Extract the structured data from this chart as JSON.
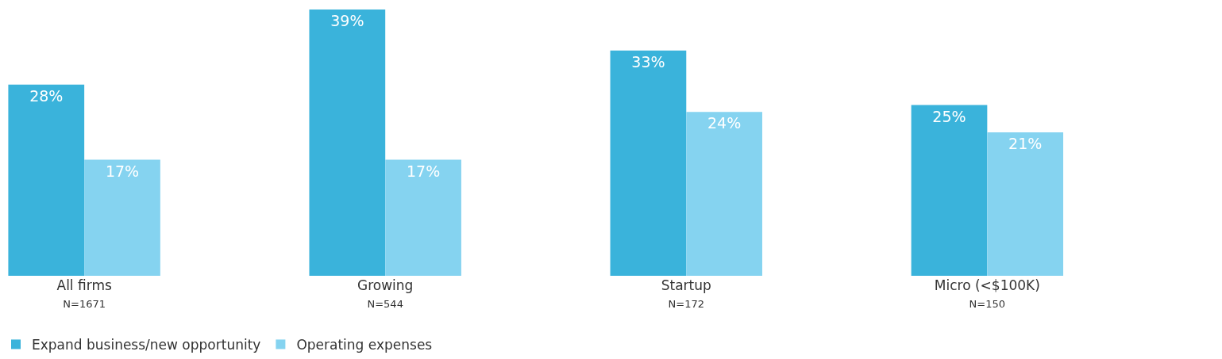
{
  "chart_data": {
    "type": "bar",
    "categories": [
      "All firms\nN=1671",
      "Growing\nN=544",
      "Startup\nN=172",
      "Micro (<$100K)\nN=150"
    ],
    "series": [
      {
        "name": "Expand business/new opportunity",
        "color": "#3ab3db",
        "values": [
          28,
          39,
          33,
          25
        ],
        "value_labels": [
          "28%",
          "39%",
          "33%",
          "25%"
        ]
      },
      {
        "name": "Operating expenses",
        "color": "#85d3f0",
        "values": [
          17,
          17,
          24,
          21
        ],
        "value_labels": [
          "17%",
          "17%",
          "24%",
          "21%"
        ]
      }
    ],
    "grid": false,
    "legend": "bottom left"
  }
}
